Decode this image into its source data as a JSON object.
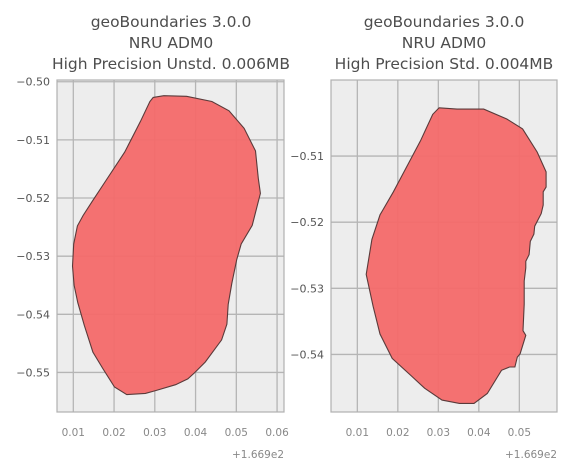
{
  "chart_data": [
    {
      "type": "map",
      "title_lines": [
        "geoBoundaries 3.0.0",
        "NRU ADM0",
        "High Precision Unstd. 0.006MB"
      ],
      "x_ticks": [
        0.01,
        0.02,
        0.03,
        0.04,
        0.05,
        0.06
      ],
      "x_tick_labels": [
        "0.01",
        "0.02",
        "0.03",
        "0.04",
        "0.05",
        "0.06"
      ],
      "x_offset_label": "+1.669e2",
      "x_offset": 166.9,
      "y_ticks": [
        -0.5,
        -0.51,
        -0.52,
        -0.53,
        -0.54,
        -0.55
      ],
      "y_tick_labels": [
        "−0.50",
        "−0.51",
        "−0.52",
        "−0.53",
        "−0.54",
        "−0.55"
      ],
      "xlim": [
        0.006,
        0.0617
      ],
      "ylim": [
        -0.5568,
        -0.4997
      ],
      "grid": true,
      "fill_color": "#f46a6a",
      "boundary": [
        [
          0.0296,
          -0.5027
        ],
        [
          0.0322,
          -0.5024
        ],
        [
          0.0378,
          -0.5025
        ],
        [
          0.044,
          -0.5034
        ],
        [
          0.0482,
          -0.505
        ],
        [
          0.0519,
          -0.508
        ],
        [
          0.0547,
          -0.5119
        ],
        [
          0.0554,
          -0.5166
        ],
        [
          0.0559,
          -0.5192
        ],
        [
          0.0539,
          -0.5247
        ],
        [
          0.0512,
          -0.5279
        ],
        [
          0.0501,
          -0.5306
        ],
        [
          0.0489,
          -0.5347
        ],
        [
          0.048,
          -0.5383
        ],
        [
          0.0477,
          -0.5417
        ],
        [
          0.0464,
          -0.5444
        ],
        [
          0.0424,
          -0.5482
        ],
        [
          0.0397,
          -0.5501
        ],
        [
          0.0381,
          -0.5511
        ],
        [
          0.0351,
          -0.5521
        ],
        [
          0.0303,
          -0.5531
        ],
        [
          0.0277,
          -0.5536
        ],
        [
          0.0231,
          -0.5538
        ],
        [
          0.0201,
          -0.5525
        ],
        [
          0.0173,
          -0.5494
        ],
        [
          0.0148,
          -0.5465
        ],
        [
          0.0127,
          -0.5419
        ],
        [
          0.0111,
          -0.538
        ],
        [
          0.0102,
          -0.535
        ],
        [
          0.0098,
          -0.5317
        ],
        [
          0.0101,
          -0.5279
        ],
        [
          0.011,
          -0.5248
        ],
        [
          0.0124,
          -0.523
        ],
        [
          0.0147,
          -0.5205
        ],
        [
          0.0181,
          -0.5169
        ],
        [
          0.0226,
          -0.5121
        ],
        [
          0.0265,
          -0.5068
        ],
        [
          0.0288,
          -0.5034
        ]
      ]
    },
    {
      "type": "map",
      "title_lines": [
        "geoBoundaries 3.0.0",
        "NRU ADM0",
        "High Precision Std. 0.004MB"
      ],
      "x_ticks": [
        0.01,
        0.02,
        0.03,
        0.04,
        0.05
      ],
      "x_tick_labels": [
        "0.01",
        "0.02",
        "0.03",
        "0.04",
        "0.05"
      ],
      "x_offset_label": "+1.669e2",
      "x_offset": 166.9,
      "y_ticks": [
        -0.51,
        -0.52,
        -0.53,
        -0.54
      ],
      "y_tick_labels": [
        "−0.51",
        "−0.52",
        "−0.53",
        "−0.54"
      ],
      "xlim": [
        0.0035,
        0.0593
      ],
      "ylim": [
        -0.5487,
        -0.4985
      ],
      "grid": true,
      "fill_color": "#f46a6a",
      "boundary": [
        [
          0.0302,
          -0.5027
        ],
        [
          0.0346,
          -0.5029
        ],
        [
          0.0412,
          -0.5029
        ],
        [
          0.0469,
          -0.5044
        ],
        [
          0.0508,
          -0.5059
        ],
        [
          0.0544,
          -0.5094
        ],
        [
          0.0566,
          -0.5124
        ],
        [
          0.0566,
          -0.5147
        ],
        [
          0.0559,
          -0.5154
        ],
        [
          0.0559,
          -0.5174
        ],
        [
          0.0554,
          -0.5187
        ],
        [
          0.0538,
          -0.5206
        ],
        [
          0.0536,
          -0.5218
        ],
        [
          0.0527,
          -0.5229
        ],
        [
          0.0524,
          -0.5249
        ],
        [
          0.0516,
          -0.5259
        ],
        [
          0.0516,
          -0.5269
        ],
        [
          0.0512,
          -0.5289
        ],
        [
          0.0512,
          -0.5324
        ],
        [
          0.0509,
          -0.5364
        ],
        [
          0.0516,
          -0.5371
        ],
        [
          0.0502,
          -0.5399
        ],
        [
          0.0495,
          -0.5404
        ],
        [
          0.0489,
          -0.5419
        ],
        [
          0.0476,
          -0.5419
        ],
        [
          0.0456,
          -0.5424
        ],
        [
          0.0446,
          -0.5434
        ],
        [
          0.0421,
          -0.5459
        ],
        [
          0.0388,
          -0.5474
        ],
        [
          0.0352,
          -0.5474
        ],
        [
          0.0309,
          -0.5469
        ],
        [
          0.0266,
          -0.5451
        ],
        [
          0.0236,
          -0.5434
        ],
        [
          0.0186,
          -0.5406
        ],
        [
          0.0156,
          -0.5369
        ],
        [
          0.0139,
          -0.5327
        ],
        [
          0.0122,
          -0.5279
        ],
        [
          0.0136,
          -0.5226
        ],
        [
          0.0156,
          -0.5189
        ],
        [
          0.0189,
          -0.5154
        ],
        [
          0.0224,
          -0.5114
        ],
        [
          0.0256,
          -0.5077
        ],
        [
          0.0286,
          -0.5037
        ]
      ]
    }
  ]
}
